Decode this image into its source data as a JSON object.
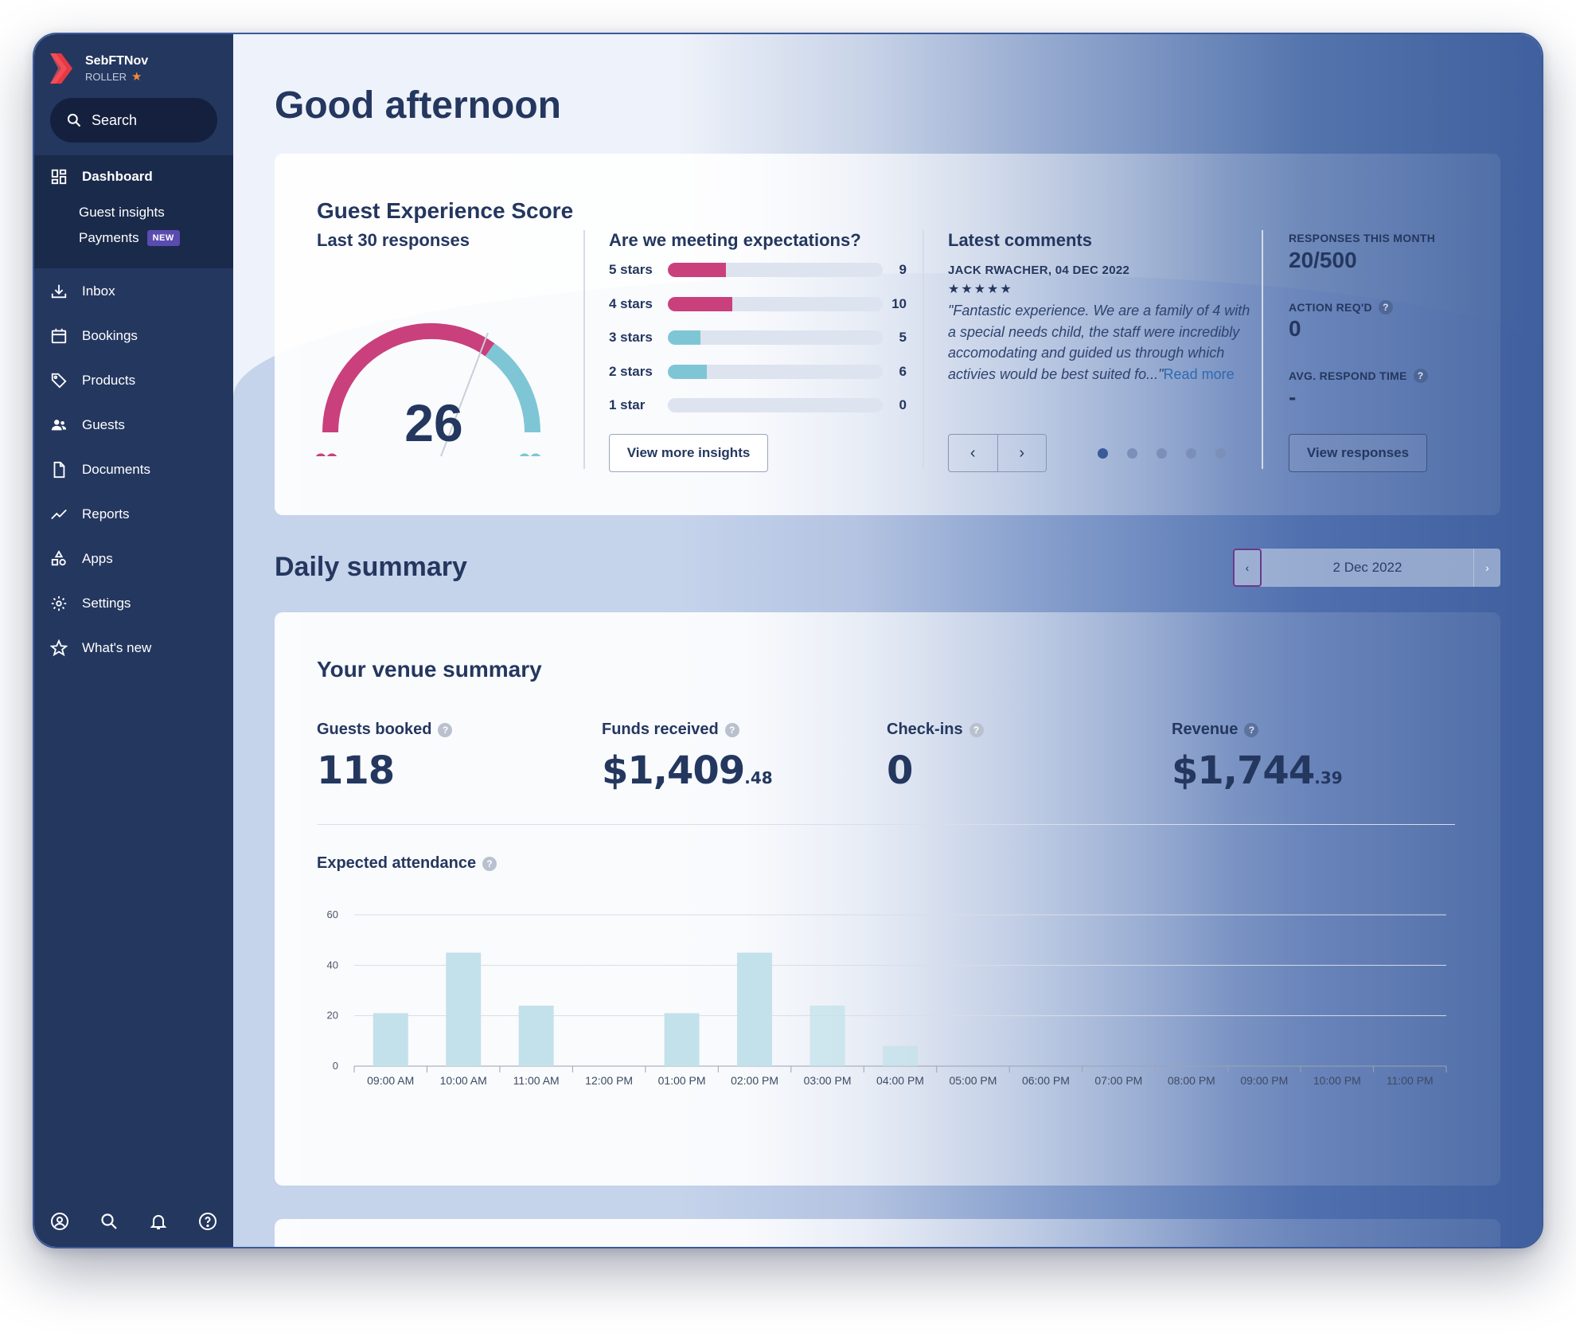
{
  "app": {
    "name": "SebFTNov",
    "org": "ROLLER"
  },
  "search": {
    "label": "Search"
  },
  "sidebar": {
    "items": [
      {
        "label": "Dashboard",
        "icon": "dashboard-icon"
      },
      {
        "label": "Guest insights"
      },
      {
        "label": "Payments",
        "badge": "NEW"
      },
      {
        "label": "Inbox",
        "icon": "inbox-icon"
      },
      {
        "label": "Bookings",
        "icon": "calendar-icon"
      },
      {
        "label": "Products",
        "icon": "tag-icon"
      },
      {
        "label": "Guests",
        "icon": "users-icon"
      },
      {
        "label": "Documents",
        "icon": "document-icon"
      },
      {
        "label": "Reports",
        "icon": "chart-line-icon"
      },
      {
        "label": "Apps",
        "icon": "apps-icon"
      },
      {
        "label": "Settings",
        "icon": "gear-icon"
      },
      {
        "label": "What's new",
        "icon": "star-icon"
      }
    ],
    "bottom_icons": [
      "account-icon",
      "search-icon",
      "bell-icon",
      "help-icon"
    ]
  },
  "greeting": "Good afternoon",
  "guest_experience": {
    "title": "Guest Experience Score",
    "subtitle": "Last 30 responses",
    "score": "26",
    "score_fraction": 0.61
  },
  "expectations": {
    "title": "Are we meeting expectations?",
    "max": 10,
    "ratings": [
      {
        "label": "5 stars",
        "value": 9,
        "color": "#c9407d"
      },
      {
        "label": "4 stars",
        "value": 10,
        "color": "#c9407d"
      },
      {
        "label": "3 stars",
        "value": 5,
        "color": "#7ec6d5"
      },
      {
        "label": "2 stars",
        "value": 6,
        "color": "#7ec6d5"
      },
      {
        "label": "1 star",
        "value": 0,
        "color": "#7ec6d5"
      }
    ],
    "button": "View more insights"
  },
  "comments": {
    "title": "Latest comments",
    "author": "JACK RWACHER, 04 DEC 2022",
    "stars": "★★★★★",
    "text": "\"Fantastic experience. We are a family of 4 with a special needs child, the staff were incredibly accomodating and guided us through which activies would be best suited fo...\"",
    "read_more": "Read more",
    "prev": "‹",
    "next": "›",
    "pages": 5,
    "active_page": 1
  },
  "responses": {
    "month_label": "RESPONSES THIS MONTH",
    "month_value": "20/500",
    "action_label": "ACTION REQ'D",
    "action_value": "0",
    "avg_label": "AVG. RESPOND TIME",
    "avg_value": "-",
    "button": "View responses"
  },
  "daily": {
    "title": "Daily summary",
    "date": "2 Dec 2022",
    "prev": "‹",
    "next": "›"
  },
  "venue": {
    "title": "Your venue summary",
    "metrics": [
      {
        "label": "Guests booked",
        "value": "118",
        "cents": ""
      },
      {
        "label": "Funds received",
        "value": "$1,409",
        "cents": ".48"
      },
      {
        "label": "Check-ins",
        "value": "0",
        "cents": ""
      },
      {
        "label": "Revenue",
        "value": "$1,744",
        "cents": ".39"
      }
    ]
  },
  "chart_data": {
    "type": "bar",
    "title": "Expected attendance",
    "categories": [
      "09:00 AM",
      "10:00 AM",
      "11:00 AM",
      "12:00 PM",
      "01:00 PM",
      "02:00 PM",
      "03:00 PM",
      "04:00 PM",
      "05:00 PM",
      "06:00 PM",
      "07:00 PM",
      "08:00 PM",
      "09:00 PM",
      "10:00 PM",
      "11:00 PM"
    ],
    "values": [
      21,
      45,
      24,
      0,
      21,
      45,
      24,
      8,
      0,
      0,
      0,
      0,
      0,
      0,
      0
    ],
    "yticks": [
      0,
      20,
      40,
      60
    ],
    "ylim": [
      0,
      60
    ],
    "grid": true,
    "bar_color": "#c3e1ea"
  }
}
